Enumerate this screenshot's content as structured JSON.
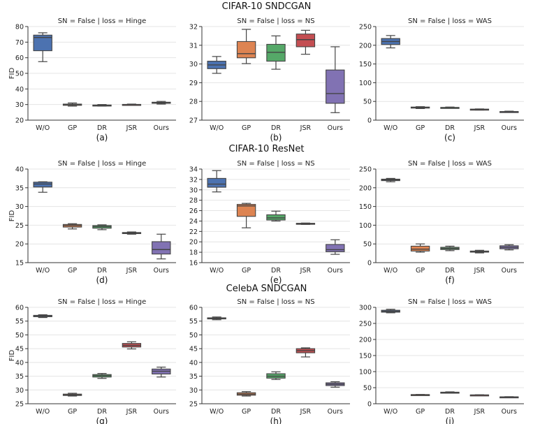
{
  "row_titles": [
    "CIFAR-10 SNDCGAN",
    "CIFAR-10 ResNet",
    "CelebA SNDCGAN"
  ],
  "colors": {
    "W/O": "#4C72B0",
    "GP": "#DD8452",
    "DR": "#55A868",
    "JSR": "#C44E52",
    "Ours": "#8172B3"
  },
  "chart_data": [
    {
      "type": "box",
      "label": "(a)",
      "title": "SN = False | loss = Hinge",
      "ylabel": "FID",
      "ylim": [
        20,
        80
      ],
      "yticks": [
        20,
        30,
        40,
        50,
        60,
        70,
        80
      ],
      "categories": [
        "W/O",
        "GP",
        "DR",
        "JSR",
        "Ours"
      ],
      "boxes": [
        {
          "min": 57.5,
          "q1": 64.5,
          "median": 73,
          "q3": 74.5,
          "max": 76
        },
        {
          "min": 29,
          "q1": 29.5,
          "median": 30,
          "q3": 30.3,
          "max": 31
        },
        {
          "min": 29,
          "q1": 29.2,
          "median": 29.4,
          "q3": 29.7,
          "max": 30
        },
        {
          "min": 29.7,
          "q1": 29.8,
          "median": 30,
          "q3": 30.1,
          "max": 30.3
        },
        {
          "min": 30.3,
          "q1": 30.8,
          "median": 31.1,
          "q3": 31.5,
          "max": 32
        }
      ]
    },
    {
      "type": "box",
      "label": "(b)",
      "title": "SN = False | loss = NS",
      "ylabel": "",
      "ylim": [
        27,
        32
      ],
      "yticks": [
        27,
        28,
        29,
        30,
        31,
        32
      ],
      "categories": [
        "W/O",
        "GP",
        "DR",
        "JSR",
        "Ours"
      ],
      "boxes": [
        {
          "min": 29.5,
          "q1": 29.75,
          "median": 29.95,
          "q3": 30.15,
          "max": 30.4
        },
        {
          "min": 30.02,
          "q1": 30.33,
          "median": 30.55,
          "q3": 31.2,
          "max": 31.85
        },
        {
          "min": 29.72,
          "q1": 30.15,
          "median": 30.62,
          "q3": 31.05,
          "max": 31.5
        },
        {
          "min": 30.52,
          "q1": 30.92,
          "median": 31.3,
          "q3": 31.6,
          "max": 31.8
        },
        {
          "min": 27.4,
          "q1": 27.9,
          "median": 28.42,
          "q3": 29.68,
          "max": 30.92
        }
      ]
    },
    {
      "type": "box",
      "label": "(c)",
      "title": "SN = False | loss = WAS",
      "ylabel": "",
      "ylim": [
        0,
        250
      ],
      "yticks": [
        0,
        50,
        100,
        150,
        200,
        250
      ],
      "categories": [
        "W/O",
        "GP",
        "DR",
        "JSR",
        "Ours"
      ],
      "boxes": [
        {
          "min": 193,
          "q1": 202,
          "median": 210,
          "q3": 218,
          "max": 226
        },
        {
          "min": 31,
          "q1": 33,
          "median": 34,
          "q3": 35,
          "max": 36
        },
        {
          "min": 32,
          "q1": 33,
          "median": 33.5,
          "q3": 34,
          "max": 35
        },
        {
          "min": 27,
          "q1": 28,
          "median": 28.5,
          "q3": 29.5,
          "max": 30
        },
        {
          "min": 21,
          "q1": 22,
          "median": 22.5,
          "q3": 23,
          "max": 24
        }
      ]
    },
    {
      "type": "box",
      "label": "(d)",
      "title": "SN = False | loss = Hinge",
      "ylabel": "FID",
      "ylim": [
        15,
        40
      ],
      "yticks": [
        15,
        20,
        25,
        30,
        35,
        40
      ],
      "categories": [
        "W/O",
        "GP",
        "DR",
        "JSR",
        "Ours"
      ],
      "boxes": [
        {
          "min": 33.8,
          "q1": 35.2,
          "median": 36.0,
          "q3": 36.5,
          "max": 36.6
        },
        {
          "min": 24.0,
          "q1": 24.5,
          "median": 24.9,
          "q3": 25.2,
          "max": 25.4
        },
        {
          "min": 23.8,
          "q1": 24.2,
          "median": 24.6,
          "q3": 24.9,
          "max": 25.1
        },
        {
          "min": 22.6,
          "q1": 22.75,
          "median": 22.9,
          "q3": 23.05,
          "max": 23.2
        },
        {
          "min": 16.0,
          "q1": 17.3,
          "median": 18.5,
          "q3": 20.6,
          "max": 22.6
        }
      ]
    },
    {
      "type": "box",
      "label": "(e)",
      "title": "SN = False | loss = NS",
      "ylabel": "",
      "ylim": [
        16,
        34
      ],
      "yticks": [
        16,
        18,
        20,
        22,
        24,
        26,
        28,
        30,
        32,
        34
      ],
      "categories": [
        "W/O",
        "GP",
        "DR",
        "JSR",
        "Ours"
      ],
      "boxes": [
        {
          "min": 29.6,
          "q1": 30.5,
          "median": 31.1,
          "q3": 32.2,
          "max": 33.7
        },
        {
          "min": 22.7,
          "q1": 24.9,
          "median": 26.9,
          "q3": 27.2,
          "max": 27.4
        },
        {
          "min": 24.0,
          "q1": 24.2,
          "median": 24.6,
          "q3": 25.2,
          "max": 25.9
        },
        {
          "min": 23.35,
          "q1": 23.42,
          "median": 23.5,
          "q3": 23.57,
          "max": 23.62
        },
        {
          "min": 17.6,
          "q1": 18.1,
          "median": 18.5,
          "q3": 19.5,
          "max": 20.4
        }
      ]
    },
    {
      "type": "box",
      "label": "(f)",
      "title": "SN = False | loss = WAS",
      "ylabel": "",
      "ylim": [
        0,
        250
      ],
      "yticks": [
        0,
        50,
        100,
        150,
        200,
        250
      ],
      "categories": [
        "W/O",
        "GP",
        "DR",
        "JSR",
        "Ours"
      ],
      "boxes": [
        {
          "min": 216,
          "q1": 219,
          "median": 221,
          "q3": 223,
          "max": 225
        },
        {
          "min": 28,
          "q1": 31,
          "median": 36,
          "q3": 44,
          "max": 50
        },
        {
          "min": 32,
          "q1": 35,
          "median": 38,
          "q3": 41,
          "max": 44
        },
        {
          "min": 26,
          "q1": 28,
          "median": 29.5,
          "q3": 31,
          "max": 33
        },
        {
          "min": 34,
          "q1": 37,
          "median": 41,
          "q3": 45,
          "max": 48
        }
      ]
    },
    {
      "type": "box",
      "label": "(g)",
      "title": "SN = False | loss = Hinge",
      "ylabel": "FID",
      "ylim": [
        25,
        60
      ],
      "yticks": [
        25,
        30,
        35,
        40,
        45,
        50,
        55,
        60
      ],
      "categories": [
        "W/O",
        "GP",
        "DR",
        "JSR",
        "Ours"
      ],
      "boxes": [
        {
          "min": 56.3,
          "q1": 56.6,
          "median": 56.9,
          "q3": 57.1,
          "max": 57.3
        },
        {
          "min": 27.8,
          "q1": 28.0,
          "median": 28.2,
          "q3": 28.5,
          "max": 28.8
        },
        {
          "min": 34.2,
          "q1": 34.7,
          "median": 35.2,
          "q3": 35.6,
          "max": 36.0
        },
        {
          "min": 44.9,
          "q1": 45.6,
          "median": 46.2,
          "q3": 46.9,
          "max": 47.5
        },
        {
          "min": 34.7,
          "q1": 35.8,
          "median": 36.8,
          "q3": 37.6,
          "max": 38.3
        }
      ]
    },
    {
      "type": "box",
      "label": "(h)",
      "title": "SN = False | loss = NS",
      "ylabel": "",
      "ylim": [
        25,
        60
      ],
      "yticks": [
        25,
        30,
        35,
        40,
        45,
        50,
        55,
        60
      ],
      "categories": [
        "W/O",
        "GP",
        "DR",
        "JSR",
        "Ours"
      ],
      "boxes": [
        {
          "min": 55.5,
          "q1": 55.8,
          "median": 56.0,
          "q3": 56.2,
          "max": 56.5
        },
        {
          "min": 27.8,
          "q1": 28.1,
          "median": 28.5,
          "q3": 29.0,
          "max": 29.4
        },
        {
          "min": 33.8,
          "q1": 34.3,
          "median": 35.0,
          "q3": 35.9,
          "max": 36.6
        },
        {
          "min": 42.0,
          "q1": 43.5,
          "median": 44.3,
          "q3": 45.0,
          "max": 45.3
        },
        {
          "min": 31.0,
          "q1": 31.6,
          "median": 32.1,
          "q3": 32.6,
          "max": 33.0
        }
      ]
    },
    {
      "type": "box",
      "label": "(i)",
      "title": "SN = False | loss = WAS",
      "ylabel": "",
      "ylim": [
        0,
        300
      ],
      "yticks": [
        0,
        50,
        100,
        150,
        200,
        250,
        300
      ],
      "categories": [
        "W/O",
        "GP",
        "DR",
        "JSR",
        "Ours"
      ],
      "boxes": [
        {
          "min": 283,
          "q1": 285,
          "median": 288,
          "q3": 291,
          "max": 294
        },
        {
          "min": 27,
          "q1": 27.5,
          "median": 28,
          "q3": 28.5,
          "max": 29
        },
        {
          "min": 33,
          "q1": 34,
          "median": 35,
          "q3": 36,
          "max": 37
        },
        {
          "min": 26,
          "q1": 26.5,
          "median": 27,
          "q3": 27.5,
          "max": 28
        },
        {
          "min": 20,
          "q1": 20.5,
          "median": 21,
          "q3": 21.5,
          "max": 22
        }
      ]
    }
  ]
}
